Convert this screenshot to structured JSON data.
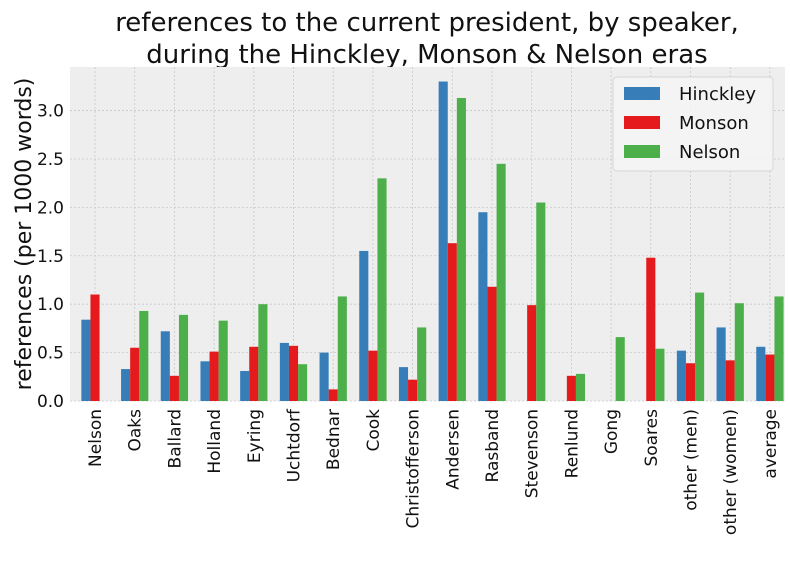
{
  "chart_data": {
    "type": "bar",
    "title_line1": "references to the current president, by speaker,",
    "title_line2": "during the Hinckley, Monson & Nelson eras",
    "xlabel": "",
    "ylabel": "references (per 1000 words)",
    "ylim": [
      0,
      3.45
    ],
    "yticks": [
      "0.0",
      "0.5",
      "1.0",
      "1.5",
      "2.0",
      "2.5",
      "3.0"
    ],
    "grid": true,
    "legend_position": "top-right",
    "categories": [
      "Nelson",
      "Oaks",
      "Ballard",
      "Holland",
      "Eyring",
      "Uchtdorf",
      "Bednar",
      "Cook",
      "Christofferson",
      "Andersen",
      "Rasband",
      "Stevenson",
      "Renlund",
      "Gong",
      "Soares",
      "other (men)",
      "other (women)",
      "average"
    ],
    "series": [
      {
        "name": "Hinckley",
        "color": "#377eb8",
        "values": [
          0.84,
          0.33,
          0.72,
          0.41,
          0.31,
          0.6,
          0.5,
          1.55,
          0.35,
          3.3,
          1.95,
          0,
          0,
          0,
          0,
          0.52,
          0.76,
          0.56
        ]
      },
      {
        "name": "Monson",
        "color": "#e41a1c",
        "values": [
          1.1,
          0.55,
          0.26,
          0.51,
          0.56,
          0.57,
          0.12,
          0.52,
          0.22,
          1.63,
          1.18,
          0.99,
          0.26,
          0,
          1.48,
          0.39,
          0.42,
          0.48
        ]
      },
      {
        "name": "Nelson",
        "color": "#4daf4a",
        "values": [
          0,
          0.93,
          0.89,
          0.83,
          1.0,
          0.38,
          1.08,
          2.3,
          0.76,
          3.13,
          2.45,
          2.05,
          0.28,
          0.66,
          0.54,
          1.12,
          1.01,
          1.08
        ]
      }
    ]
  }
}
